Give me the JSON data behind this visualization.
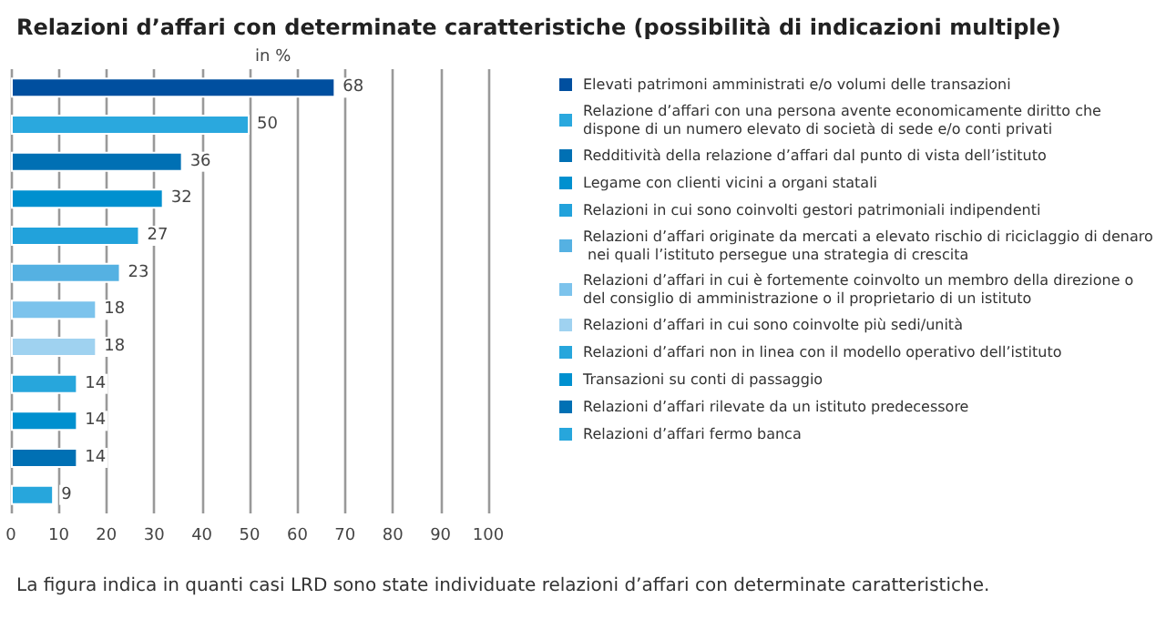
{
  "chart_data": {
    "type": "bar",
    "orientation": "horizontal",
    "stacked": true,
    "title": "Relazioni d’affari con determinate caratteristiche (possibilità di indicazioni multiple)",
    "xlabel": "in %",
    "categories": [
      null,
      null,
      null,
      null,
      null,
      null,
      null,
      null,
      null,
      null,
      null,
      null
    ],
    "series": [
      {
        "name": "Elevati patrimoni amministrati e/o volumi delle transazioni",
        "color": "#004f9f",
        "values": [
          68,
          null,
          null,
          null,
          null,
          null,
          null,
          null,
          null,
          null,
          null,
          null
        ]
      },
      {
        "name": "Relazione d’affari con una persona avente economicamente diritto che dispone di un numero elevato di società di sede e/o conti privati",
        "color": "#2aa8de",
        "values": [
          null,
          50,
          null,
          null,
          null,
          null,
          null,
          null,
          null,
          null,
          null,
          null
        ]
      },
      {
        "name": "Redditività della relazione d’affari dal punto di vista dell’istituto",
        "color": "#0070b4",
        "values": [
          null,
          null,
          36,
          null,
          null,
          null,
          null,
          null,
          null,
          null,
          null,
          null
        ]
      },
      {
        "name": "Legame con clienti vicini a organi statali",
        "color": "#0090cf",
        "values": [
          null,
          null,
          null,
          32,
          null,
          null,
          null,
          null,
          null,
          null,
          null,
          null
        ]
      },
      {
        "name": "Relazioni in cui sono coinvolti gestori patrimoniali indipendenti",
        "color": "#22a2db",
        "values": [
          null,
          null,
          null,
          null,
          27,
          null,
          null,
          null,
          null,
          null,
          null,
          null
        ]
      },
      {
        "name": "Relazioni d’affari originate da mercati a elevato rischio di riciclaggio di denaro nei quali l’istituto persegue una strategia di crescita",
        "color": "#55b1e2",
        "values": [
          null,
          null,
          null,
          null,
          null,
          23,
          null,
          null,
          null,
          null,
          null,
          null
        ]
      },
      {
        "name": "Relazioni d’affari in cui è fortemente coinvolto un membro della direzione o del consiglio di amministrazione o il proprietario di un istituto",
        "color": "#7cc3ec",
        "values": [
          null,
          null,
          null,
          null,
          null,
          null,
          18,
          null,
          null,
          null,
          null,
          null
        ]
      },
      {
        "name": "Relazioni d’affari in cui sono coinvolte più sedi/unità",
        "color": "#9fd2f0",
        "values": [
          null,
          null,
          null,
          null,
          null,
          null,
          null,
          18,
          null,
          null,
          null,
          null
        ]
      },
      {
        "name": "Relazioni d’affari non in linea con il modello operativo dell’istituto",
        "color": "#27a6dc",
        "values": [
          null,
          null,
          null,
          null,
          null,
          null,
          null,
          null,
          14,
          null,
          null,
          null
        ]
      },
      {
        "name": "Transazioni su conti di passaggio",
        "color": "#0090cf",
        "values": [
          null,
          null,
          null,
          null,
          null,
          null,
          null,
          null,
          null,
          14,
          null,
          null
        ]
      },
      {
        "name": "Relazioni d’affari rilevate da un istituto predecessore",
        "color": "#0070b4",
        "values": [
          null,
          null,
          null,
          null,
          null,
          null,
          null,
          null,
          null,
          null,
          14,
          null
        ]
      },
      {
        "name": "Relazioni d’affari fermo banca",
        "color": "#27a6dc",
        "values": [
          null,
          null,
          null,
          null,
          null,
          null,
          null,
          null,
          null,
          null,
          null,
          9
        ]
      }
    ],
    "xlim": [
      0,
      100
    ],
    "xticks": [
      0,
      10,
      20,
      30,
      40,
      50,
      60,
      70,
      80,
      90,
      100
    ],
    "grid": "x",
    "legend": "right",
    "data_labels": true,
    "annotations": [
      "La figura indica in quanti casi LRD sono state individuate relazioni d’affari con determinate caratteristiche."
    ]
  }
}
